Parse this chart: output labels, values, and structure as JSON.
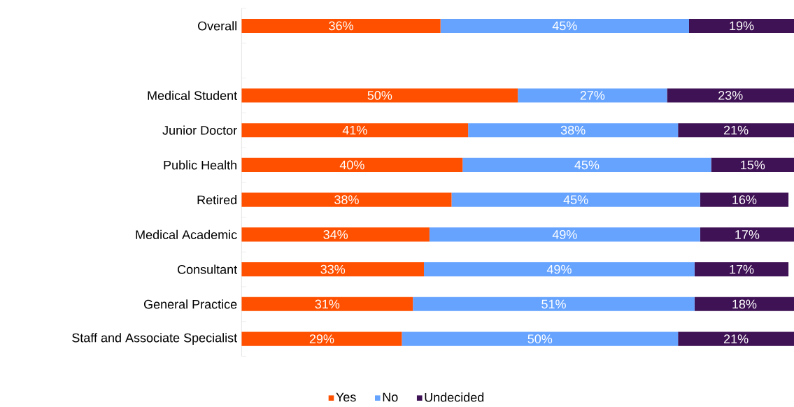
{
  "chart_data": {
    "type": "bar",
    "orientation": "horizontal",
    "stacked": true,
    "legend": "bottom",
    "categories": [
      "Overall",
      null,
      "Medical Student",
      "Junior Doctor",
      "Public Health",
      "Retired",
      "Medical Academic",
      "Consultant",
      "General Practice",
      "Staff and Associate Specialist"
    ],
    "series": [
      {
        "name": "Yes",
        "color": "#ff5000",
        "values": [
          36,
          null,
          50,
          41,
          40,
          38,
          34,
          33,
          31,
          29
        ],
        "value_labels": [
          "36%",
          null,
          "50%",
          "41%",
          "40%",
          "38%",
          "34%",
          "33%",
          "31%",
          "29%"
        ]
      },
      {
        "name": "No",
        "color": "#66a3ff",
        "values": [
          45,
          null,
          27,
          38,
          45,
          45,
          49,
          49,
          51,
          50
        ],
        "value_labels": [
          "45%",
          null,
          "27%",
          "38%",
          "45%",
          "45%",
          "49%",
          "49%",
          "51%",
          "50%"
        ]
      },
      {
        "name": "Undecided",
        "color": "#3f1255",
        "values": [
          19,
          null,
          23,
          21,
          15,
          16,
          17,
          17,
          18,
          21
        ],
        "value_labels": [
          "19%",
          null,
          "23%",
          "21%",
          "15%",
          "16%",
          "17%",
          "17%",
          "18%",
          "21%"
        ]
      }
    ]
  }
}
